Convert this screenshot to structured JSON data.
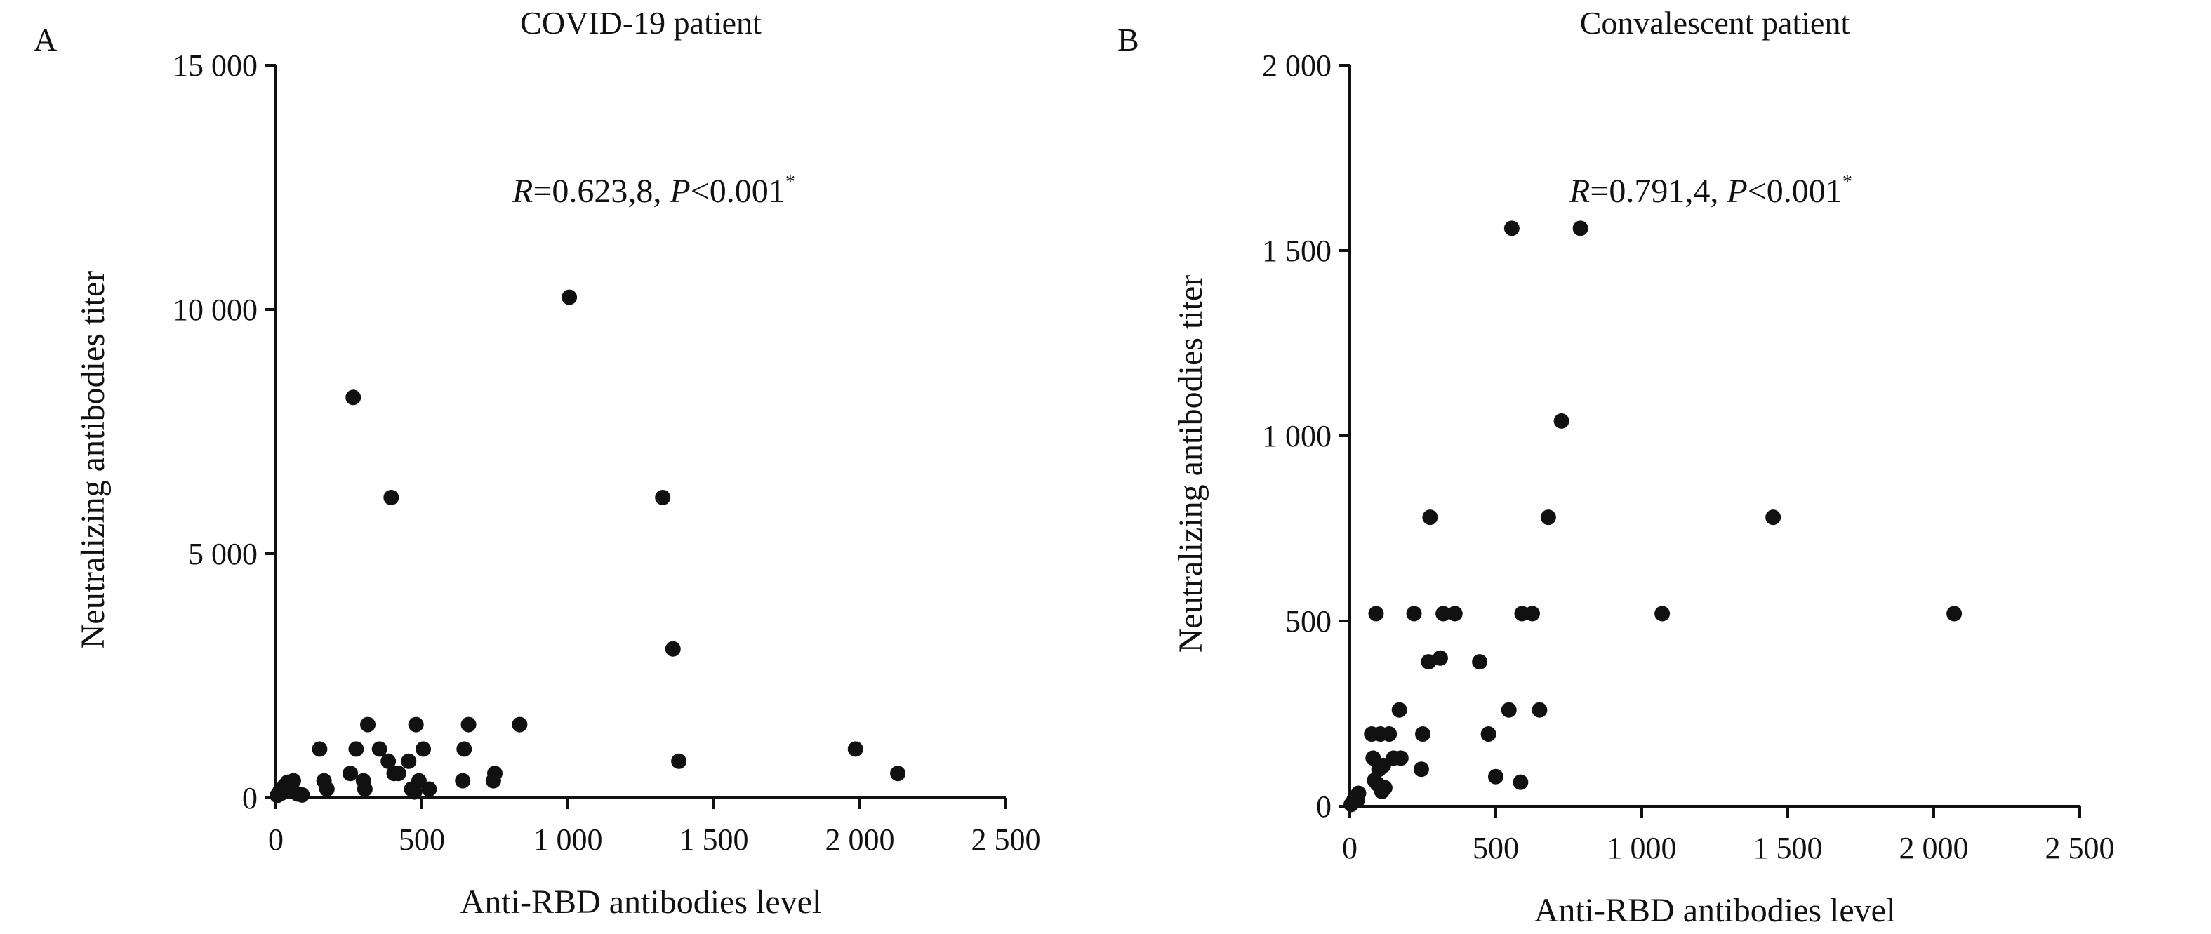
{
  "chart_data": [
    {
      "type": "scatter",
      "panel_label": "A",
      "title": "COVID-19 patient",
      "xlabel": "Anti-RBD antibodies level",
      "ylabel": "Neutralizing antibodies titer",
      "xlim": [
        0,
        2500
      ],
      "ylim": [
        0,
        15000
      ],
      "xticks": [
        0,
        500,
        1000,
        1500,
        2000,
        2500
      ],
      "yticks": [
        0,
        5000,
        10000,
        15000
      ],
      "xtick_labels": [
        "0",
        "500",
        "1 000",
        "1 500",
        "2 000",
        "2 500"
      ],
      "ytick_labels": [
        "0",
        "5 000",
        "10 000",
        "15 000"
      ],
      "annotation": {
        "r_symbol": "R",
        "r_value": "=0.623,8, ",
        "p_symbol": "P",
        "p_value": "<0.001",
        "sup": "*"
      },
      "grid": false,
      "points": [
        {
          "x": 5,
          "y": 50
        },
        {
          "x": 15,
          "y": 150
        },
        {
          "x": 20,
          "y": 100
        },
        {
          "x": 30,
          "y": 250
        },
        {
          "x": 40,
          "y": 320
        },
        {
          "x": 50,
          "y": 200
        },
        {
          "x": 60,
          "y": 350
        },
        {
          "x": 75,
          "y": 80
        },
        {
          "x": 90,
          "y": 60
        },
        {
          "x": 150,
          "y": 1000
        },
        {
          "x": 165,
          "y": 350
        },
        {
          "x": 175,
          "y": 180
        },
        {
          "x": 255,
          "y": 500
        },
        {
          "x": 265,
          "y": 8200
        },
        {
          "x": 275,
          "y": 1000
        },
        {
          "x": 300,
          "y": 350
        },
        {
          "x": 305,
          "y": 180
        },
        {
          "x": 315,
          "y": 1500
        },
        {
          "x": 355,
          "y": 1000
        },
        {
          "x": 385,
          "y": 750
        },
        {
          "x": 395,
          "y": 6150
        },
        {
          "x": 405,
          "y": 500
        },
        {
          "x": 420,
          "y": 500
        },
        {
          "x": 455,
          "y": 750
        },
        {
          "x": 465,
          "y": 180
        },
        {
          "x": 475,
          "y": 120
        },
        {
          "x": 480,
          "y": 1500
        },
        {
          "x": 490,
          "y": 350
        },
        {
          "x": 505,
          "y": 1000
        },
        {
          "x": 525,
          "y": 180
        },
        {
          "x": 640,
          "y": 350
        },
        {
          "x": 645,
          "y": 1000
        },
        {
          "x": 660,
          "y": 1500
        },
        {
          "x": 745,
          "y": 350
        },
        {
          "x": 750,
          "y": 500
        },
        {
          "x": 835,
          "y": 1500
        },
        {
          "x": 1005,
          "y": 10250
        },
        {
          "x": 1325,
          "y": 6150
        },
        {
          "x": 1360,
          "y": 3050
        },
        {
          "x": 1380,
          "y": 750
        },
        {
          "x": 1985,
          "y": 1000
        },
        {
          "x": 2130,
          "y": 500
        }
      ]
    },
    {
      "type": "scatter",
      "panel_label": "B",
      "title": "Convalescent patient",
      "xlabel": "Anti-RBD antibodies level",
      "ylabel": "Neutralizing antibodies titer",
      "xlim": [
        0,
        2500
      ],
      "ylim": [
        0,
        2000
      ],
      "xticks": [
        0,
        500,
        1000,
        1500,
        2000,
        2500
      ],
      "yticks": [
        0,
        500,
        1000,
        1500,
        2000
      ],
      "xtick_labels": [
        "0",
        "500",
        "1 000",
        "1 500",
        "2 000",
        "2 500"
      ],
      "ytick_labels": [
        "0",
        "500",
        "1 000",
        "1 500",
        "2 000"
      ],
      "annotation": {
        "r_symbol": "R",
        "r_value": "=0.791,4, ",
        "p_symbol": "P",
        "p_value": "<0.001",
        "sup": "*"
      },
      "grid": false,
      "points": [
        {
          "x": 5,
          "y": 5
        },
        {
          "x": 10,
          "y": 10
        },
        {
          "x": 15,
          "y": 18
        },
        {
          "x": 20,
          "y": 25
        },
        {
          "x": 25,
          "y": 15
        },
        {
          "x": 30,
          "y": 35
        },
        {
          "x": 75,
          "y": 195
        },
        {
          "x": 80,
          "y": 130
        },
        {
          "x": 85,
          "y": 70
        },
        {
          "x": 90,
          "y": 520
        },
        {
          "x": 95,
          "y": 60
        },
        {
          "x": 100,
          "y": 100
        },
        {
          "x": 105,
          "y": 195
        },
        {
          "x": 110,
          "y": 40
        },
        {
          "x": 115,
          "y": 110
        },
        {
          "x": 120,
          "y": 50
        },
        {
          "x": 135,
          "y": 195
        },
        {
          "x": 150,
          "y": 130
        },
        {
          "x": 170,
          "y": 260
        },
        {
          "x": 175,
          "y": 130
        },
        {
          "x": 220,
          "y": 520
        },
        {
          "x": 245,
          "y": 100
        },
        {
          "x": 250,
          "y": 195
        },
        {
          "x": 270,
          "y": 390
        },
        {
          "x": 275,
          "y": 780
        },
        {
          "x": 310,
          "y": 400
        },
        {
          "x": 320,
          "y": 520
        },
        {
          "x": 360,
          "y": 520
        },
        {
          "x": 445,
          "y": 390
        },
        {
          "x": 475,
          "y": 195
        },
        {
          "x": 500,
          "y": 80
        },
        {
          "x": 545,
          "y": 260
        },
        {
          "x": 555,
          "y": 1560
        },
        {
          "x": 585,
          "y": 65
        },
        {
          "x": 590,
          "y": 520
        },
        {
          "x": 625,
          "y": 520
        },
        {
          "x": 650,
          "y": 260
        },
        {
          "x": 680,
          "y": 780
        },
        {
          "x": 725,
          "y": 1040
        },
        {
          "x": 790,
          "y": 1560
        },
        {
          "x": 1070,
          "y": 520
        },
        {
          "x": 1450,
          "y": 780
        },
        {
          "x": 2070,
          "y": 520
        }
      ]
    }
  ]
}
